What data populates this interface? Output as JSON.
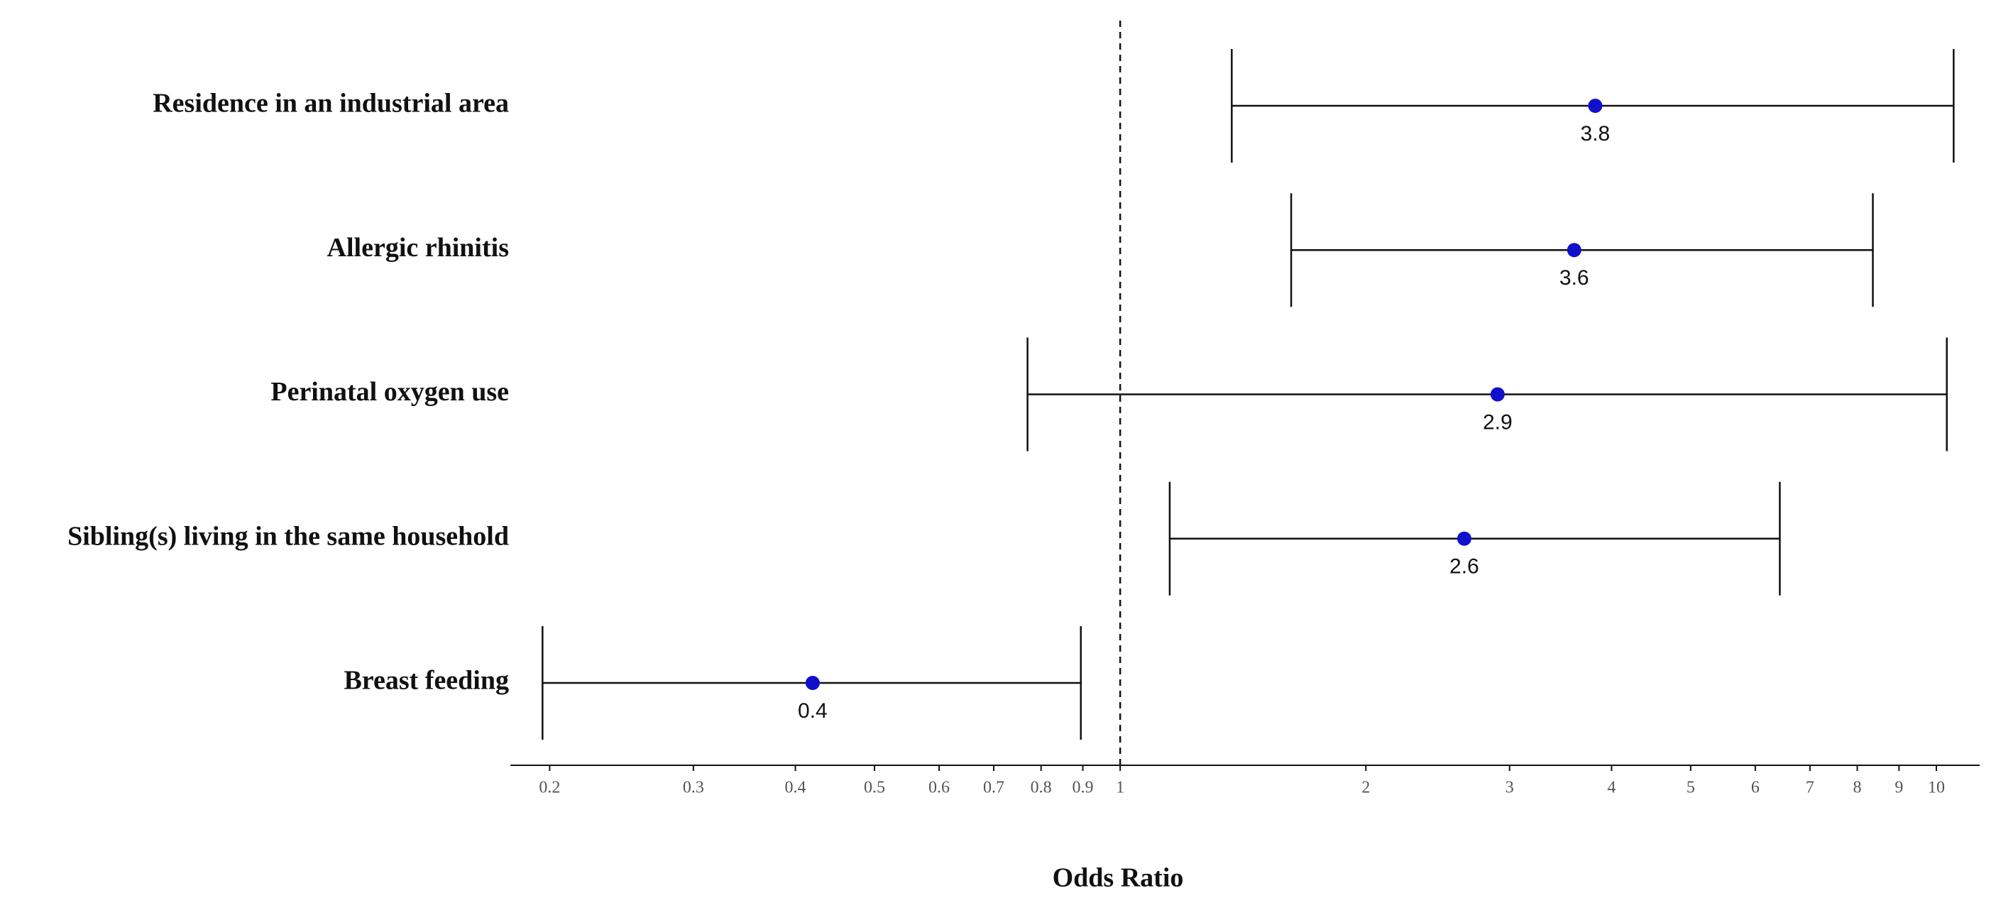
{
  "chart_data": {
    "type": "forest",
    "categories": [
      "Residence in an industrial area",
      "Allergic rhinitis",
      "Perinatal oxygen use",
      "Sibling(s) living in the same household",
      "Breast feeding"
    ],
    "values": [
      3.82,
      3.6,
      2.9,
      2.64,
      0.42
    ],
    "value_labels": [
      "3.8",
      "3.6",
      "2.9",
      "2.6",
      "0.4"
    ],
    "lower": [
      1.37,
      1.62,
      0.77,
      1.15,
      0.196
    ],
    "upper": [
      10.5,
      8.36,
      10.3,
      6.43,
      0.895
    ],
    "color": "#1010cc",
    "xlabel": "Odds Ratio",
    "xscale": "log",
    "xlim": [
      0.179,
      11.3
    ],
    "xticks": [
      0.2,
      0.3,
      0.4,
      0.5,
      0.6,
      0.7,
      0.8,
      0.9,
      1,
      2,
      3,
      4,
      5,
      6,
      7,
      8,
      9,
      10
    ],
    "reference_line": 1
  }
}
